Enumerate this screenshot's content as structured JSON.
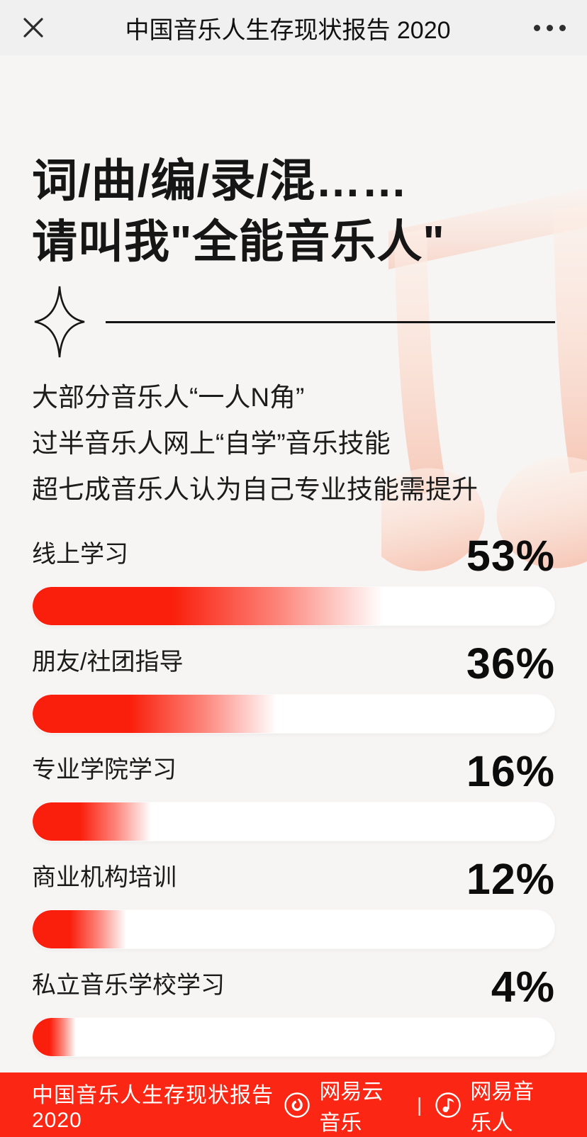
{
  "appbar": {
    "title": "中国音乐人生存现状报告 2020",
    "close": "close",
    "more": "more options"
  },
  "hero": {
    "title_line1": "词/曲/编/录/混……",
    "title_line2": "请叫我\"全能音乐人\""
  },
  "intro": {
    "line1": "大部分音乐人“一人N角”",
    "line2": "过半音乐人网上“自学”音乐技能",
    "line3": "超七成音乐人认为自己专业技能需提升"
  },
  "chart_data": {
    "type": "bar",
    "orientation": "horizontal",
    "categories": [
      "线上学习",
      "朋友/社团指导",
      "专业学院学习",
      "商业机构培训",
      "私立音乐学校学习"
    ],
    "values": [
      53,
      36,
      16,
      12,
      4
    ],
    "value_labels": [
      "53%",
      "36%",
      "16%",
      "12%",
      "4%"
    ],
    "unit": "%",
    "xlim": [
      0,
      100
    ],
    "grid": false,
    "legend": false,
    "bar_style": "red gradient fading to white on white pill track"
  },
  "footer": {
    "report_label": "中国音乐人生存现状报告2020",
    "brand_left": "网易云音乐",
    "separator": "|",
    "brand_right": "网易音乐人"
  },
  "colors": {
    "bar_red": "#fa1f0c",
    "footer_red": "#fb2613",
    "page_bg": "#f7f5f4",
    "appbar_bg": "#f0f0f0",
    "track_white": "#ffffff",
    "text_black": "#161616",
    "watermark_pink": "#f8cdbe"
  }
}
